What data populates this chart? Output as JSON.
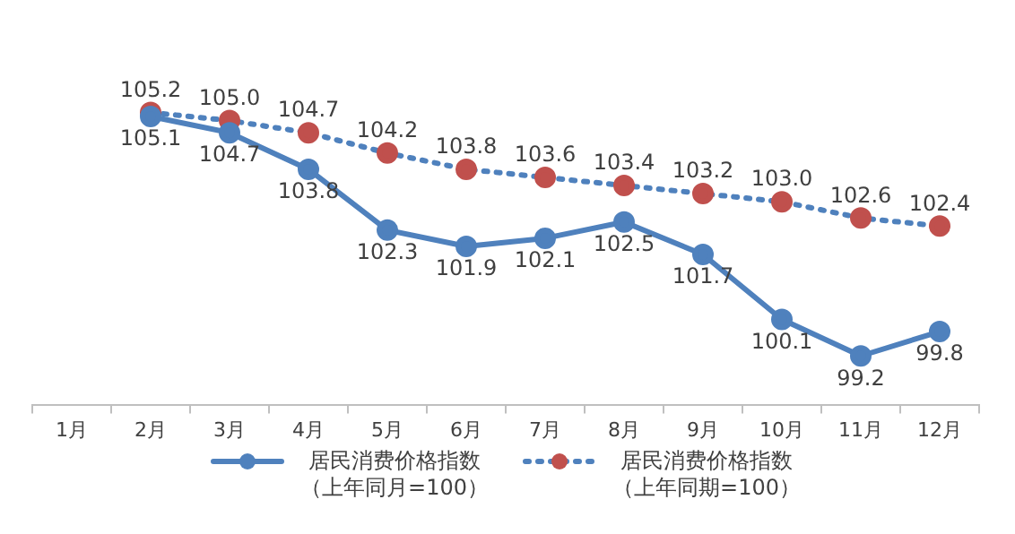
{
  "chart_data": {
    "type": "line",
    "categories": [
      "1月",
      "2月",
      "3月",
      "4月",
      "5月",
      "6月",
      "7月",
      "8月",
      "9月",
      "10月",
      "11月",
      "12月"
    ],
    "series": [
      {
        "name": "居民消费价格指数（上年同月=100）",
        "color": "#4f81bd",
        "line_style": "solid",
        "values": [
          null,
          105.1,
          104.7,
          103.8,
          102.3,
          101.9,
          102.1,
          102.5,
          101.7,
          100.1,
          99.2,
          99.8
        ],
        "value_labels": [
          null,
          "105.1",
          "104.7",
          "103.8",
          "102.3",
          "101.9",
          "102.1",
          "102.5",
          "101.7",
          "100.1",
          "99.2",
          "99.8"
        ]
      },
      {
        "name": "居民消费价格指数（上年同期=100）",
        "color": "#4f81bd",
        "colors": [
          "#c0504d",
          "#c0504d",
          "#c0504d",
          "#c0504d",
          "#c0504d",
          "#c0504d",
          "#c0504d",
          "#c0504d",
          "#c0504d",
          "#c0504d",
          "#c0504d",
          "#c0504d"
        ],
        "line_style": "dotted",
        "values": [
          null,
          105.2,
          105.0,
          104.7,
          104.2,
          103.8,
          103.6,
          103.4,
          103.2,
          103.0,
          102.6,
          102.4
        ],
        "value_labels": [
          null,
          "105.2",
          "105.0",
          "104.7",
          "104.2",
          "103.8",
          "103.6",
          "103.4",
          "103.2",
          "103.0",
          "102.6",
          "102.4"
        ]
      }
    ],
    "marker": "circle",
    "legend": "bottom"
  }
}
